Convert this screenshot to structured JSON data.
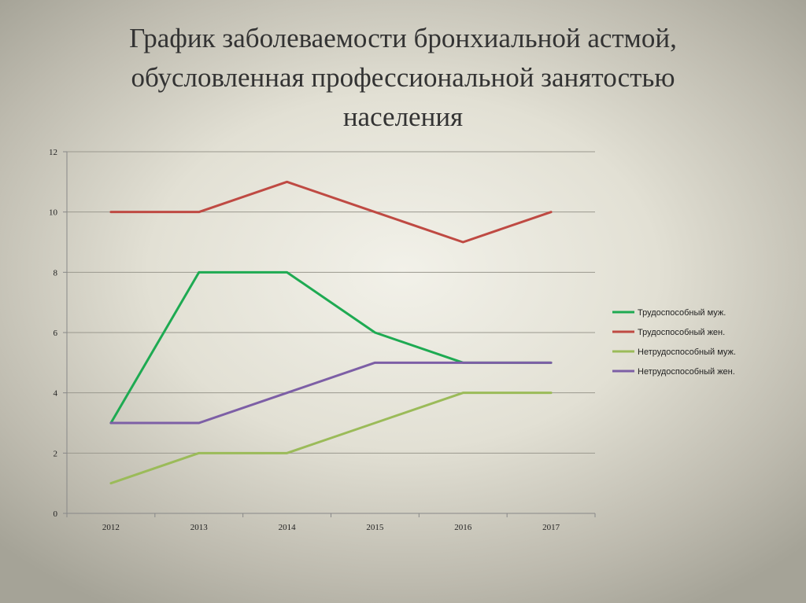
{
  "title_lines": [
    "График заболеваемости бронхиальной астмой,",
    "обусловленная профессиональной занятостью",
    "населения"
  ],
  "chart_data": {
    "type": "line",
    "title": "График заболеваемости бронхиальной астмой, обусловленная профессиональной занятостью населения",
    "x": [
      "2012",
      "2013",
      "2014",
      "2015",
      "2016",
      "2017"
    ],
    "ylim": [
      0,
      12
    ],
    "yticks": [
      0,
      2,
      4,
      6,
      8,
      10,
      12
    ],
    "grid": true,
    "legend_position": "right",
    "series": [
      {
        "name": "Трудоспособный  муж.",
        "color": "#1eaa52",
        "values": [
          3,
          8,
          8,
          6,
          5,
          5
        ]
      },
      {
        "name": "Трудоспособный  жен.",
        "color": "#bf4a43",
        "values": [
          10,
          10,
          11,
          10,
          9,
          10
        ]
      },
      {
        "name": "Нетрудоспособный муж.",
        "color": "#9bbb59",
        "values": [
          1,
          2,
          2,
          3,
          4,
          4
        ]
      },
      {
        "name": "Нетрудоспособный жен.",
        "color": "#7d5fa6",
        "values": [
          3,
          3,
          4,
          5,
          5,
          5
        ]
      }
    ]
  }
}
